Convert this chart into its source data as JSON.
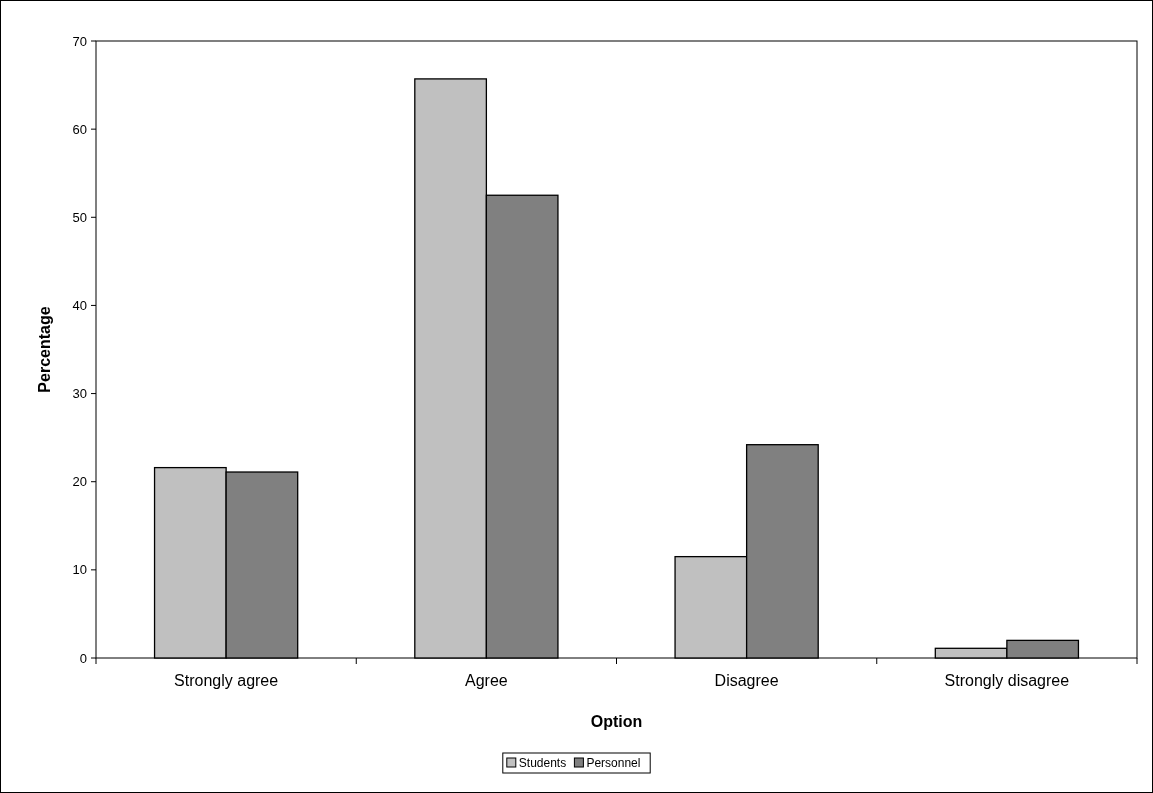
{
  "chart_data": {
    "type": "bar",
    "xlabel": "Option",
    "ylabel": "Percentage",
    "categories": [
      "Strongly agree",
      "Agree",
      "Disagree",
      "Strongly disagree"
    ],
    "series": [
      {
        "name": "Students",
        "color": "#c0c0c0",
        "values": [
          21.6,
          65.7,
          11.5,
          1.1
        ]
      },
      {
        "name": "Personnel",
        "color": "#808080",
        "values": [
          21.1,
          52.5,
          24.2,
          2.0
        ]
      }
    ],
    "ylim": [
      0,
      70
    ],
    "yticks": [
      0,
      10,
      20,
      30,
      40,
      50,
      60,
      70
    ],
    "grid": false,
    "legend": "bottom"
  }
}
